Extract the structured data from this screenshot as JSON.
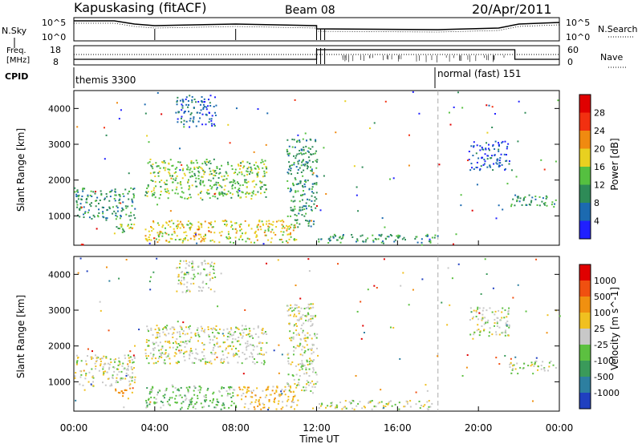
{
  "header": {
    "station": "Kapuskasing (fitACF)",
    "beam": "Beam 08",
    "date": "20/Apr/2011"
  },
  "status_panels": {
    "nsky_label": "N.Sky",
    "nsearch_label": "N.Search",
    "noise_ticks": [
      "10^5",
      "10^0"
    ],
    "freq_label_1": "Freq.",
    "freq_label_2": "[MHz]",
    "freq_ticks": [
      "18",
      "8"
    ],
    "nave_label": "Nave",
    "nave_ticks": [
      "60",
      "0"
    ],
    "cpid_label": "CPID",
    "cpid_1": "themis 3300",
    "cpid_2": "normal (fast) 151"
  },
  "axes": {
    "x_label": "Time UT",
    "x_ticks": [
      "00:00",
      "04:00",
      "08:00",
      "12:00",
      "16:00",
      "20:00",
      "00:00"
    ],
    "x_tick_hours": [
      0,
      4,
      8,
      12,
      16,
      20,
      24
    ],
    "y_label": "Slant Range [km]",
    "y_ticks": [
      "1000",
      "2000",
      "3000",
      "4000"
    ],
    "y_tick_values": [
      1000,
      2000,
      3000,
      4000
    ]
  },
  "chart_data": [
    {
      "type": "heatmap",
      "panel": "power",
      "x_unit": "hours UT",
      "y_unit": "km",
      "xlim": [
        0,
        24
      ],
      "ylim": [
        180,
        4500
      ],
      "colorbar_label": "Power [dB]",
      "colorbar_ticks": [
        "28",
        "24",
        "20",
        "16",
        "12",
        "8",
        "4"
      ],
      "colorbar_colors": [
        "#2020ff",
        "#1c6ab0",
        "#2e8b57",
        "#55c040",
        "#e8d020",
        "#f08a10",
        "#f23010",
        "#e00000"
      ],
      "scatter_regions": [
        {
          "t0": 0.0,
          "t1": 3.0,
          "r0": 900,
          "r1": 1800,
          "level": 2
        },
        {
          "t0": 2.0,
          "t1": 3.0,
          "r0": 550,
          "r1": 850,
          "level": 3
        },
        {
          "t0": 3.5,
          "t1": 9.5,
          "r0": 1500,
          "r1": 2600,
          "level": 3
        },
        {
          "t0": 5.0,
          "t1": 7.0,
          "r0": 3500,
          "r1": 4400,
          "level": 1
        },
        {
          "t0": 3.5,
          "t1": 11.0,
          "r0": 250,
          "r1": 900,
          "level": 4
        },
        {
          "t0": 10.5,
          "t1": 12.0,
          "r0": 700,
          "r1": 3200,
          "level": 2
        },
        {
          "t0": 12.0,
          "t1": 18.0,
          "r0": 250,
          "r1": 500,
          "level": 2
        },
        {
          "t0": 19.5,
          "t1": 21.5,
          "r0": 2300,
          "r1": 3100,
          "level": 1
        },
        {
          "t0": 21.5,
          "t1": 23.8,
          "r0": 1250,
          "r1": 1600,
          "level": 2
        }
      ]
    },
    {
      "type": "heatmap",
      "panel": "velocity",
      "x_unit": "hours UT",
      "y_unit": "km",
      "xlim": [
        0,
        24
      ],
      "ylim": [
        180,
        4500
      ],
      "colorbar_label": "Velocity [m s^-1]",
      "colorbar_ticks": [
        "1000",
        "500",
        "100",
        "25",
        "-25",
        "-100",
        "-500",
        "-1000"
      ],
      "colorbar_colors": [
        "#2040c0",
        "#2d7fa0",
        "#3a9a5a",
        "#5cc040",
        "#c8c8c8",
        "#f0c020",
        "#f09010",
        "#f05010",
        "#e00000"
      ],
      "scatter_regions": [
        {
          "t0": 0.0,
          "t1": 3.0,
          "r0": 900,
          "r1": 1800,
          "level": 4
        },
        {
          "t0": 2.0,
          "t1": 3.0,
          "r0": 550,
          "r1": 850,
          "level": 6
        },
        {
          "t0": 3.5,
          "t1": 9.5,
          "r0": 1500,
          "r1": 2600,
          "level": 4
        },
        {
          "t0": 5.0,
          "t1": 7.0,
          "r0": 3500,
          "r1": 4400,
          "level": 4
        },
        {
          "t0": 3.5,
          "t1": 8.0,
          "r0": 250,
          "r1": 900,
          "level": 3
        },
        {
          "t0": 8.0,
          "t1": 11.0,
          "r0": 250,
          "r1": 900,
          "level": 5
        },
        {
          "t0": 10.5,
          "t1": 12.0,
          "r0": 700,
          "r1": 3200,
          "level": 4
        },
        {
          "t0": 12.0,
          "t1": 18.0,
          "r0": 250,
          "r1": 500,
          "level": 4
        },
        {
          "t0": 19.5,
          "t1": 21.5,
          "r0": 2300,
          "r1": 3100,
          "level": 4
        },
        {
          "t0": 21.5,
          "t1": 23.8,
          "r0": 1250,
          "r1": 1600,
          "level": 4
        }
      ]
    }
  ]
}
